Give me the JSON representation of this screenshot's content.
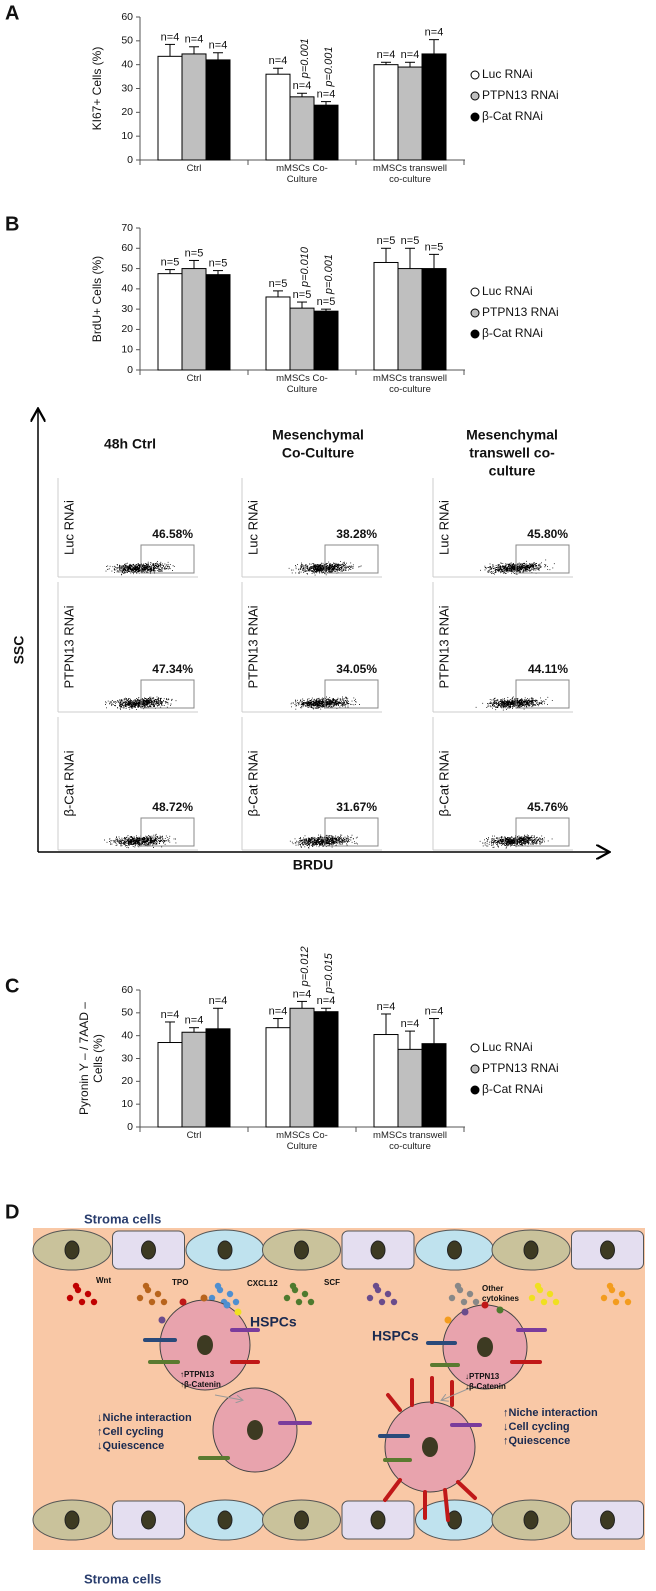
{
  "chart_data": [
    {
      "type": "bar",
      "panel": "A",
      "ylabel": [
        "KI67+ Cells (%)"
      ],
      "categories": [
        "Ctrl",
        "mMSCs Co-Culture",
        "mMSCs transwell co-culture"
      ],
      "ylim": [
        0,
        60
      ],
      "yticks": [
        0,
        10,
        20,
        30,
        40,
        50,
        60
      ],
      "series": [
        {
          "name": "Luc RNAi",
          "color": "#ffffff",
          "values": [
            43.5,
            36,
            40
          ],
          "errors": [
            5,
            2.5,
            1
          ],
          "labels": [
            "n=4",
            "n=4",
            "n=4"
          ],
          "pvalues": [
            null,
            null,
            null
          ]
        },
        {
          "name": "PTPN13 RNAi",
          "color": "#bfbfbf",
          "values": [
            44.5,
            26.5,
            39
          ],
          "errors": [
            3,
            1.5,
            2
          ],
          "labels": [
            "n=4",
            "n=4",
            "n=4"
          ],
          "pvalues": [
            null,
            "p=0.001",
            null
          ]
        },
        {
          "name": "β-Cat RNAi",
          "color": "#000000",
          "values": [
            42,
            23,
            44.5
          ],
          "errors": [
            3,
            1.5,
            6
          ],
          "labels": [
            "n=4",
            "n=4",
            "n=4"
          ],
          "pvalues": [
            null,
            "p=0.001",
            null
          ]
        }
      ]
    },
    {
      "type": "bar",
      "panel": "B",
      "ylabel": [
        "BrdU+ Cells (%)"
      ],
      "categories": [
        "Ctrl",
        "mMSCs Co-Culture",
        "mMSCs transwell co-culture"
      ],
      "ylim": [
        0,
        70
      ],
      "yticks": [
        0,
        10,
        20,
        30,
        40,
        50,
        60,
        70
      ],
      "series": [
        {
          "name": "Luc RNAi",
          "color": "#ffffff",
          "values": [
            47.5,
            36,
            53
          ],
          "errors": [
            2,
            3,
            7
          ],
          "labels": [
            "n=5",
            "n=5",
            "n=5"
          ],
          "pvalues": [
            null,
            null,
            null
          ]
        },
        {
          "name": "PTPN13 RNAi",
          "color": "#bfbfbf",
          "values": [
            50,
            30.5,
            50
          ],
          "errors": [
            4,
            3,
            10
          ],
          "labels": [
            "n=5",
            "n=5",
            "n=5"
          ],
          "pvalues": [
            null,
            "p=0.010",
            null
          ]
        },
        {
          "name": "β-Cat RNAi",
          "color": "#000000",
          "values": [
            47,
            29,
            50
          ],
          "errors": [
            2,
            1,
            7
          ],
          "labels": [
            "n=5",
            "n=5",
            "n=5"
          ],
          "pvalues": [
            null,
            "p=0.001",
            null
          ]
        }
      ]
    },
    {
      "type": "bar",
      "panel": "C",
      "ylabel": [
        "Pyronin Y – / 7AAD –",
        "Cells (%)"
      ],
      "categories": [
        "Ctrl",
        "mMSCs Co-Culture",
        "mMSCs transwell co-culture"
      ],
      "ylim": [
        0,
        60
      ],
      "yticks": [
        0,
        10,
        20,
        30,
        40,
        50,
        60
      ],
      "series": [
        {
          "name": "Luc RNAi",
          "color": "#ffffff",
          "values": [
            37,
            43.5,
            40.5
          ],
          "errors": [
            9,
            4,
            9
          ],
          "labels": [
            "n=4",
            "n=4",
            "n=4"
          ],
          "pvalues": [
            null,
            null,
            null
          ]
        },
        {
          "name": "PTPN13 RNAi",
          "color": "#bfbfbf",
          "values": [
            41.5,
            52,
            34
          ],
          "errors": [
            2,
            3,
            8
          ],
          "labels": [
            "n=4",
            "n=4",
            "n=4"
          ],
          "pvalues": [
            null,
            "p=0.012",
            null
          ]
        },
        {
          "name": "β-Cat RNAi",
          "color": "#000000",
          "values": [
            43,
            50.5,
            36.5
          ],
          "errors": [
            9,
            1.5,
            11
          ],
          "labels": [
            "n=4",
            "n=4",
            "n=4"
          ],
          "pvalues": [
            null,
            "p=0.015",
            null
          ]
        }
      ]
    }
  ],
  "flow": {
    "columns": [
      [
        "48h Ctrl"
      ],
      [
        "Mesenchymal",
        "Co-Culture"
      ],
      [
        "Mesenchymal",
        "transwell co-",
        "culture"
      ]
    ],
    "rows": [
      "Luc RNAi",
      "PTPN13 RNAi",
      "β-Cat RNAi"
    ],
    "percents": [
      [
        "46.58%",
        "38.28%",
        "45.80%"
      ],
      [
        "47.34%",
        "34.05%",
        "44.11%"
      ],
      [
        "48.72%",
        "31.67%",
        "45.76%"
      ]
    ],
    "ylabel": "SSC",
    "xlabel": "BRDU"
  },
  "diagram": {
    "panel": "D",
    "stroma_top": "Stroma cells",
    "stroma_bottom": "Stroma cells",
    "cytokines": [
      "Wnt",
      "TPO",
      "CXCL12",
      "SCF"
    ],
    "other_cytokines": [
      "Other",
      "cytokines"
    ],
    "left_cell": {
      "title": "HSPCs",
      "markers": [
        "↑PTPN13",
        "↑β-Catenin"
      ],
      "effects": [
        "↓Niche interaction",
        "↑Cell cycling",
        "↓Quiescence"
      ]
    },
    "right_cell": {
      "title": "HSPCs",
      "markers": [
        "↓PTPN13",
        "↓β-Catenin"
      ],
      "effects": [
        "↑Niche interaction",
        "↓Cell cycling",
        "↑Quiescence"
      ]
    }
  }
}
